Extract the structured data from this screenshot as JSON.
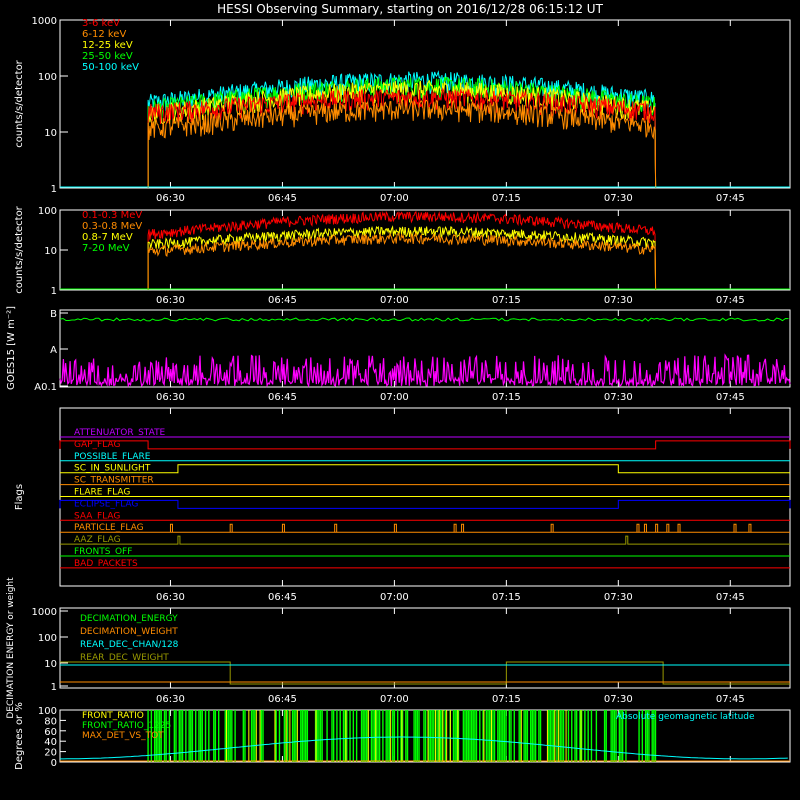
{
  "title": "HESSI Observing Summary, starting on 2016/12/28 06:15:12 UT",
  "time_ticks": [
    "06:30",
    "06:45",
    "07:00",
    "07:15",
    "07:30",
    "07:45"
  ],
  "colors": {
    "red": "#ff0000",
    "orange": "#ff8c00",
    "yellow": "#ffff00",
    "green": "#00ff00",
    "cyan": "#00ffff",
    "magenta": "#ff00ff",
    "blue": "#0000ff",
    "purple": "#bb00ff",
    "olive": "#999900",
    "white": "#ffffff"
  },
  "chart_data": [
    {
      "type": "line",
      "panel": "hxr",
      "ylabel": "counts/s/detector",
      "yscale": "log",
      "ylim": [
        1,
        1000
      ],
      "ytick_labels": [
        "1",
        "10",
        "100",
        "1000"
      ],
      "data_start": "06:27",
      "data_end": "07:35",
      "peak_time": "07:03",
      "series": [
        {
          "name": "3-6 keV",
          "color": "#ff0000",
          "baseline": 17,
          "peak": 40
        },
        {
          "name": "6-12 keV",
          "color": "#ff8c00",
          "baseline": 8,
          "peak": 25
        },
        {
          "name": "12-25 keV",
          "color": "#ffff00",
          "baseline": 12,
          "peak": 55
        },
        {
          "name": "25-50 keV",
          "color": "#00ff00",
          "baseline": 15,
          "peak": 65
        },
        {
          "name": "50-100 keV",
          "color": "#00ffff",
          "baseline": 20,
          "peak": 80
        }
      ]
    },
    {
      "type": "line",
      "panel": "gamma",
      "ylabel": "counts/s/detector",
      "yscale": "log",
      "ylim": [
        1,
        100
      ],
      "ytick_labels": [
        "1",
        "10",
        "100"
      ],
      "data_start": "06:27",
      "data_end": "07:35",
      "series": [
        {
          "name": "0.1-0.3 MeV",
          "color": "#ff0000",
          "baseline": 15,
          "peak": 70
        },
        {
          "name": "0.3-0.8 MeV",
          "color": "#ff8c00",
          "baseline": 7,
          "peak": 20
        },
        {
          "name": "0.8-7 MeV",
          "color": "#ffff00",
          "baseline": 10,
          "peak": 30
        },
        {
          "name": "7-20 MeV",
          "color": "#00ff00",
          "baseline": 1,
          "peak": 1
        }
      ]
    },
    {
      "type": "line",
      "panel": "goes",
      "ylabel": "GOES15 [W m⁻²]",
      "ytick_labels": [
        "A0.1",
        "A",
        "B"
      ],
      "series": [
        {
          "color": "#00ff00",
          "level": "B"
        },
        {
          "color": "#ff00ff",
          "level": "A0.1"
        }
      ]
    },
    {
      "type": "line",
      "panel": "flags",
      "ylabel": "Flags",
      "flags": [
        {
          "name": "ATTENUATOR_STATE",
          "color": "#bb00ff",
          "on": []
        },
        {
          "name": "GAP_FLAG",
          "color": "#ff0000",
          "on": [
            [
              "06:15",
              "06:27"
            ],
            [
              "07:35",
              "07:53"
            ]
          ]
        },
        {
          "name": "POSSIBLE_FLARE",
          "color": "#00ffff",
          "on": []
        },
        {
          "name": "SC_IN_SUNLIGHT",
          "color": "#ffff00",
          "on": [
            [
              "06:31",
              "07:30"
            ]
          ]
        },
        {
          "name": "SC_TRANSMITTER",
          "color": "#ff8c00",
          "on": []
        },
        {
          "name": "FLARE_FLAG",
          "color": "#ffff00",
          "on": []
        },
        {
          "name": "ECLIPSE_FLAG",
          "color": "#0000ff",
          "on": [
            [
              "06:15",
              "06:31"
            ],
            [
              "07:30",
              "07:53"
            ]
          ]
        },
        {
          "name": "SAA_FLAG",
          "color": "#ff0000",
          "on": []
        },
        {
          "name": "PARTICLE_FLAG",
          "color": "#ff8c00",
          "on": []
        },
        {
          "name": "AAZ_FLAG",
          "color": "#999900",
          "on": [
            [
              "06:31",
              "06:31"
            ],
            [
              "07:31",
              "07:31"
            ]
          ]
        },
        {
          "name": "FRONTS_OFF",
          "color": "#00ff00",
          "on": []
        },
        {
          "name": "BAD_PACKETS",
          "color": "#ff0000",
          "on": []
        }
      ]
    },
    {
      "type": "line",
      "panel": "decimation",
      "ylabel": "DECIMATION ENERGY or weight",
      "yscale": "log",
      "ytick_labels": [
        "1",
        "10",
        "100",
        "1000"
      ],
      "series": [
        {
          "name": "DECIMATION_ENERGY",
          "color": "#00ff00"
        },
        {
          "name": "DECIMATION_WEIGHT",
          "color": "#ff8c00"
        },
        {
          "name": "REAR_DEC_CHAN/128",
          "color": "#00ffff"
        },
        {
          "name": "REAR_DEC_WEIGHT",
          "color": "#999900"
        }
      ]
    },
    {
      "type": "line",
      "panel": "front",
      "ylabel": "Degrees or %",
      "ylim": [
        0,
        100
      ],
      "ytick_labels": [
        "0",
        "20",
        "40",
        "60",
        "80",
        "100"
      ],
      "series": [
        {
          "name": "FRONT_RATIO",
          "color": "#ffff00"
        },
        {
          "name": "FRONT_RATIO_1225",
          "color": "#00ff00"
        },
        {
          "name": "MAX_DET_VS_TOT",
          "color": "#ff8c00"
        },
        {
          "name": "Absolute geomagnetic latitude",
          "color": "#00ffff"
        }
      ]
    }
  ]
}
